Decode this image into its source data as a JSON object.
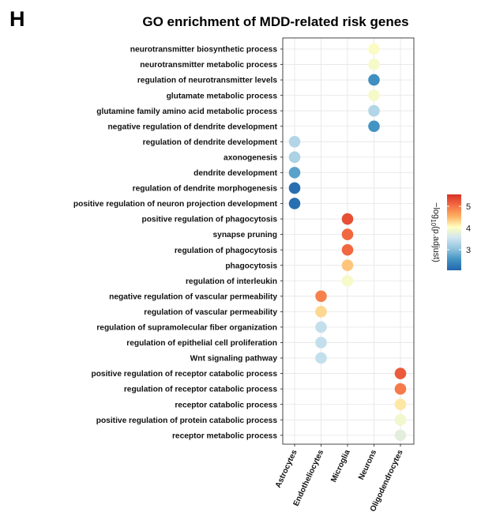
{
  "panel_label": "H",
  "chart_data": {
    "type": "scatter",
    "title": "GO enrichment of MDD-related risk genes",
    "xlabel": "",
    "ylabel": "",
    "x_categories": [
      "Astrocytes",
      "Endotheliocytes",
      "Microglia",
      "Neurons",
      "Oligodendrocytes"
    ],
    "y_categories": [
      "neurotransmitter biosynthetic process",
      "neurotransmitter metabolic process",
      "regulation of neurotransmitter levels",
      "glutamate metabolic process",
      "glutamine family amino acid metabolic process",
      "negative regulation of dendrite development",
      "regulation of dendrite development",
      "axonogenesis",
      "dendrite development",
      "regulation of dendrite morphogenesis",
      "positive regulation of neuron projection development",
      "positive regulation of phagocytosis",
      "synapse pruning",
      "regulation of phagocytosis",
      "phagocytosis",
      "regulation of interleukin",
      "negative regulation of vascular permeability",
      "regulation of vascular permeability",
      "regulation of supramolecular fiber organization",
      "regulation of epithelial cell proliferation",
      "Wnt signaling pathway",
      "positive regulation of receptor catabolic process",
      "regulation of receptor catabolic process",
      "receptor catabolic process",
      "positive regulation of protein catabolic process",
      "receptor metabolic process"
    ],
    "points": [
      {
        "x": "Neurons",
        "y": "neurotransmitter biosynthetic process",
        "value": 4.0
      },
      {
        "x": "Neurons",
        "y": "neurotransmitter metabolic process",
        "value": 3.95
      },
      {
        "x": "Neurons",
        "y": "regulation of neurotransmitter levels",
        "value": 2.5
      },
      {
        "x": "Neurons",
        "y": "glutamate metabolic process",
        "value": 3.95
      },
      {
        "x": "Neurons",
        "y": "glutamine family amino acid metabolic process",
        "value": 3.3
      },
      {
        "x": "Neurons",
        "y": "negative regulation of dendrite development",
        "value": 2.55
      },
      {
        "x": "Astrocytes",
        "y": "regulation of dendrite development",
        "value": 3.3
      },
      {
        "x": "Astrocytes",
        "y": "axonogenesis",
        "value": 3.25
      },
      {
        "x": "Astrocytes",
        "y": "dendrite development",
        "value": 2.7
      },
      {
        "x": "Astrocytes",
        "y": "regulation of dendrite morphogenesis",
        "value": 2.15
      },
      {
        "x": "Astrocytes",
        "y": "positive regulation of neuron projection development",
        "value": 2.15
      },
      {
        "x": "Microglia",
        "y": "positive regulation of phagocytosis",
        "value": 5.3
      },
      {
        "x": "Microglia",
        "y": "synapse pruning",
        "value": 5.1
      },
      {
        "x": "Microglia",
        "y": "regulation of phagocytosis",
        "value": 5.1
      },
      {
        "x": "Microglia",
        "y": "phagocytosis",
        "value": 4.4
      },
      {
        "x": "Microglia",
        "y": "regulation of interleukin",
        "value": 3.95
      },
      {
        "x": "Endotheliocytes",
        "y": "negative regulation of vascular permeability",
        "value": 4.9
      },
      {
        "x": "Endotheliocytes",
        "y": "regulation of vascular permeability",
        "value": 4.3
      },
      {
        "x": "Endotheliocytes",
        "y": "regulation of supramolecular fiber organization",
        "value": 3.45
      },
      {
        "x": "Endotheliocytes",
        "y": "regulation of epithelial cell proliferation",
        "value": 3.45
      },
      {
        "x": "Endotheliocytes",
        "y": "Wnt signaling pathway",
        "value": 3.45
      },
      {
        "x": "Oligodendrocytes",
        "y": "positive regulation of receptor catabolic process",
        "value": 5.2
      },
      {
        "x": "Oligodendrocytes",
        "y": "regulation of receptor catabolic process",
        "value": 4.95
      },
      {
        "x": "Oligodendrocytes",
        "y": "receptor catabolic process",
        "value": 4.2
      },
      {
        "x": "Oligodendrocytes",
        "y": "positive regulation of protein catabolic process",
        "value": 3.9
      },
      {
        "x": "Oligodendrocytes",
        "y": "receptor metabolic process",
        "value": 3.75
      }
    ],
    "colorbar": {
      "title_parts": [
        "−log",
        "10",
        "(p.adjust)"
      ],
      "min": 2.05,
      "max": 5.55,
      "ticks": [
        3,
        4,
        5
      ],
      "colors": [
        "#2166ac",
        "#4393c3",
        "#92c5de",
        "#d1e5f0",
        "#ffffbf",
        "#fdae61",
        "#f46d43",
        "#d73027"
      ]
    },
    "grid": true,
    "legend_position": "right",
    "palette": {
      "panel_background": "#ffffff",
      "grid_color": "#e5e5e5",
      "border_color": "#333333"
    }
  }
}
